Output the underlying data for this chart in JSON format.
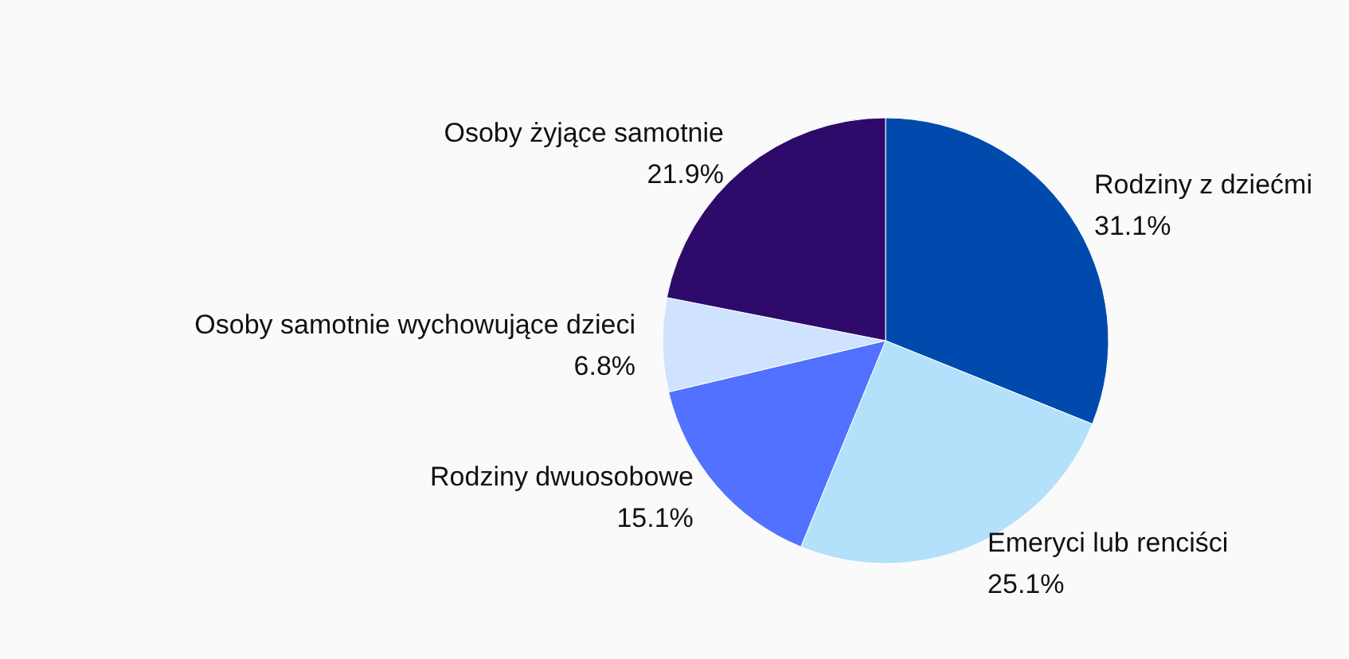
{
  "chart_data": {
    "type": "pie",
    "categories": [
      "Rodziny z dziećmi",
      "Emeryci lub renciści",
      "Rodziny dwuosobowe",
      "Osoby samotnie wychowujące dzieci",
      "Osoby żyjące samotnie"
    ],
    "values": [
      31.1,
      25.1,
      15.1,
      6.8,
      21.9
    ],
    "value_labels": [
      "31.1%",
      "25.1%",
      "15.1%",
      "6.8%",
      "21.9%"
    ],
    "colors": [
      "#004aad",
      "#b3e0fa",
      "#5271ff",
      "#cfe2ff",
      "#2e0a6a"
    ],
    "legend": false
  }
}
